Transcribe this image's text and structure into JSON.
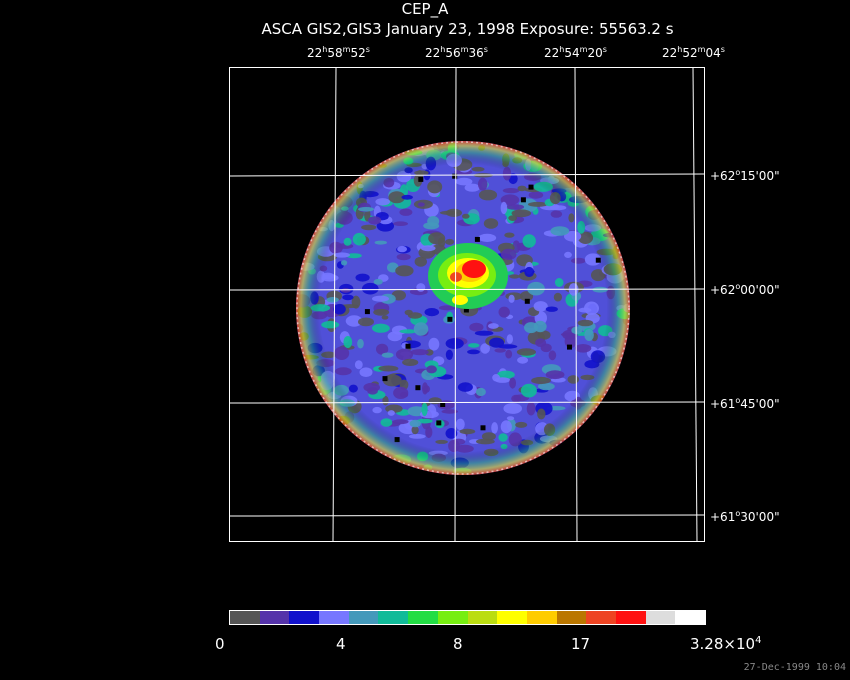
{
  "header": {
    "title": "CEP_A",
    "subtitle": "ASCA GIS2,GIS3 January 23, 1998 Exposure: 55563.2 s"
  },
  "ra_ticks": [
    {
      "h": "22",
      "m": "58",
      "s": "52"
    },
    {
      "h": "22",
      "m": "56",
      "s": "36"
    },
    {
      "h": "22",
      "m": "54",
      "s": "20"
    },
    {
      "h": "22",
      "m": "52",
      "s": "04"
    }
  ],
  "dec_ticks": [
    {
      "d": "+62",
      "rest": "15'00\""
    },
    {
      "d": "+62",
      "rest": "00'00\""
    },
    {
      "d": "+61",
      "rest": "45'00\""
    },
    {
      "d": "+61",
      "rest": "30'00\""
    }
  ],
  "colorbar": {
    "colors": [
      "#555555",
      "#5533aa",
      "#1111cc",
      "#7777ff",
      "#4499bb",
      "#11bb99",
      "#22dd44",
      "#77ee11",
      "#bbdd11",
      "#ffff00",
      "#ffcc00",
      "#bb7700",
      "#ee4422",
      "#ff1111",
      "#dddddd",
      "#ffffff"
    ],
    "labels": {
      "l0": "0",
      "l1": "4",
      "l2": "8",
      "l3": "17",
      "l4_base": "3.28×10",
      "l4_exp": "4"
    }
  },
  "footer": {
    "timestamp": "27-Dec-1999 10:04"
  }
}
